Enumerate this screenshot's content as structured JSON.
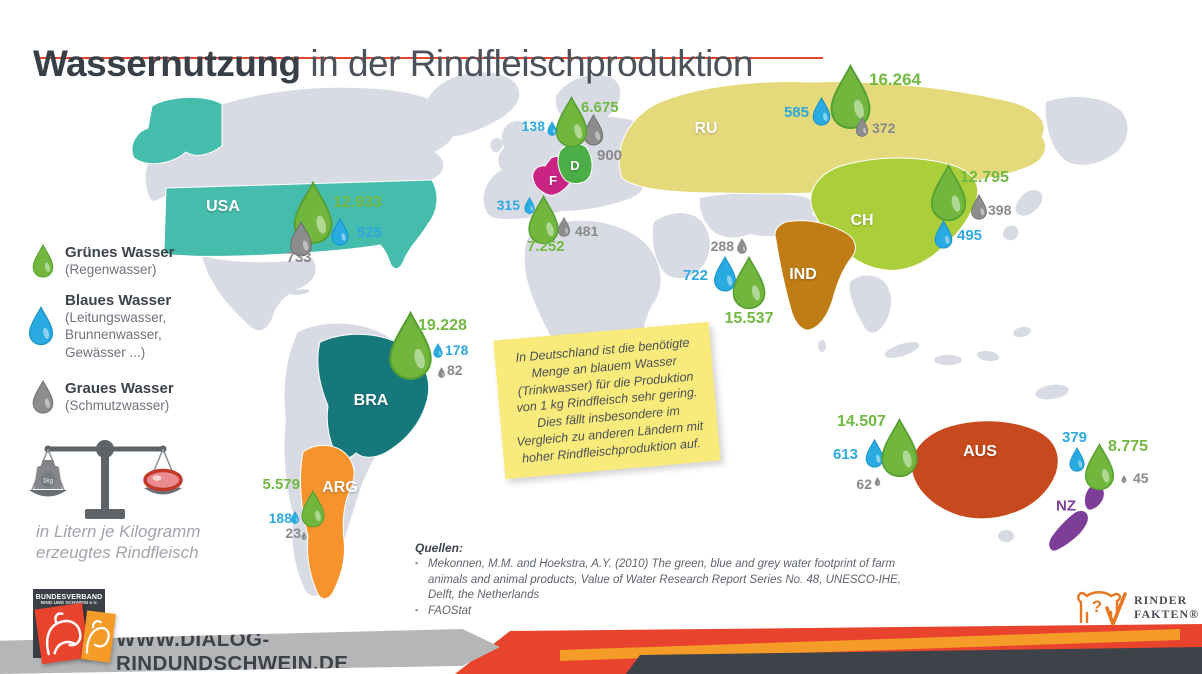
{
  "title": {
    "bold": "Wassernutzung",
    "rest": " in der Rindfleischproduktion"
  },
  "legend": {
    "items": [
      {
        "id": "green",
        "name": "Grünes Wasser",
        "desc": "(Regenwasser)"
      },
      {
        "id": "blue",
        "name": "Blaues Wasser",
        "desc": "(Leitungswasser, Brunnenwasser, Gewässer ...)"
      },
      {
        "id": "grey",
        "name": "Graues Wasser",
        "desc": "(Schmutzwasser)"
      }
    ],
    "weight_label": "1kg",
    "unit_caption": "in Litern je Kilogramm erzeugtes Rindfleisch"
  },
  "countries": [
    {
      "id": "usa",
      "label": "USA",
      "color": "#46bcac",
      "green": "12.933",
      "blue": "525",
      "grey": "733"
    },
    {
      "id": "deu",
      "label": "D",
      "color": "#4bae46",
      "green": "6.675",
      "blue": "138",
      "grey": "900"
    },
    {
      "id": "fra",
      "label": "F",
      "color": "#c92383",
      "green": "7.252",
      "blue": "315",
      "grey": "481"
    },
    {
      "id": "rus",
      "label": "RU",
      "color": "#e4d97b",
      "green": "16.264",
      "blue": "585",
      "grey": "372"
    },
    {
      "id": "chn",
      "label": "CH",
      "color": "#abce3b",
      "green": "12.795",
      "blue": "495",
      "grey": "398"
    },
    {
      "id": "ind",
      "label": "IND",
      "color": "#c07c15",
      "green": "15.537",
      "blue": "722",
      "grey": "288"
    },
    {
      "id": "bra",
      "label": "BRA",
      "color": "#17787b",
      "green": "19.228",
      "blue": "178",
      "grey": "82"
    },
    {
      "id": "arg",
      "label": "ARG",
      "color": "#f6932d",
      "green": "5.579",
      "blue": "188",
      "grey": "23"
    },
    {
      "id": "aus",
      "label": "AUS",
      "color": "#c74a1e",
      "green": "14.507",
      "blue": "613",
      "grey": "62"
    },
    {
      "id": "nzl",
      "label": "NZ",
      "color": "#7c3e97",
      "green": "8.775",
      "blue": "379",
      "grey": "45"
    }
  ],
  "note": {
    "text": "In Deutschland ist die benötigte Menge an blauem Wasser (Trinkwasser) für die Produktion von 1 kg Rindfleisch sehr gering. Dies fällt insbesondere im Vergleich zu anderen Ländern mit hoher Rindfleischproduktion auf."
  },
  "sources": {
    "heading": "Quellen:",
    "items": [
      "Mekonnen, M.M. and Hoekstra, A.Y. (2010) The green, blue and grey water footprint of farm animals and animal products, Value of Water Research Report Series No. 48, UNESCO-IHE, Delft, the Netherlands",
      "FAOStat"
    ]
  },
  "footer": {
    "url": "WWW.DIALOG-RINDUNDSCHWEIN.DE",
    "association_line1": "BUNDESVERBAND",
    "association_line2": "RIND UND SCHWEIN e.V.",
    "brand_line1": "RINDER",
    "brand_line2": "FAKTEN®"
  },
  "colors": {
    "green_water": "#72b63e",
    "green_water_dark": "#55a032",
    "blue_water": "#29abe2",
    "blue_water_dark": "#148fc7",
    "grey_water": "#8d8d8d",
    "grey_water_dark": "#6e6e6e",
    "green_label": "#72b843",
    "blue_label": "#2ea9df",
    "grey_label": "#8a8a8a",
    "map_land": "#d8dbe3",
    "accent_red": "#e8432d",
    "footer_orange": "#f59c28",
    "footer_dark": "#3e4349",
    "banner_gray": "#b5b6b8",
    "note_yellow": "#f8eb7c"
  },
  "chart_data": {
    "type": "table",
    "title": "Wassernutzung in der Rindfleischproduktion",
    "unit": "Liter je Kilogramm erzeugtes Rindfleisch",
    "legend": [
      "Grünes Wasser (Regenwasser)",
      "Blaues Wasser (Leitungswasser, Brunnenwasser, Gewässer ...)",
      "Graues Wasser (Schmutzwasser)"
    ],
    "categories": [
      "USA",
      "D",
      "F",
      "RU",
      "CH",
      "IND",
      "BRA",
      "ARG",
      "AUS",
      "NZ"
    ],
    "series": [
      {
        "name": "Grünes Wasser",
        "values": [
          12933,
          6675,
          7252,
          16264,
          12795,
          15537,
          19228,
          5579,
          14507,
          8775
        ]
      },
      {
        "name": "Blaues Wasser",
        "values": [
          525,
          138,
          315,
          585,
          495,
          722,
          178,
          188,
          613,
          379
        ]
      },
      {
        "name": "Graues Wasser",
        "values": [
          733,
          900,
          481,
          372,
          398,
          288,
          82,
          23,
          62,
          45
        ]
      }
    ]
  }
}
